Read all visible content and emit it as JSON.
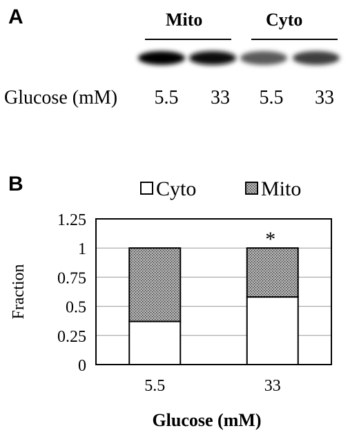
{
  "panel_a": {
    "letter": "A",
    "groups": [
      "Mito",
      "Cyto"
    ],
    "row_label": "Glucose (mM)",
    "lanes": [
      "5.5",
      "33",
      "5.5",
      "33"
    ],
    "band_intensity": [
      1.0,
      0.95,
      0.55,
      0.7
    ]
  },
  "panel_b": {
    "letter": "B",
    "legend": [
      {
        "label": "Cyto",
        "pattern": "white"
      },
      {
        "label": "Mito",
        "pattern": "stipple"
      }
    ],
    "significance_marker": "*"
  },
  "chart_data": {
    "type": "bar",
    "stacked": true,
    "categories": [
      "5.5",
      "33"
    ],
    "series": [
      {
        "name": "Cyto",
        "values": [
          0.37,
          0.58
        ]
      },
      {
        "name": "Mito",
        "values": [
          0.63,
          0.42
        ]
      }
    ],
    "xlabel": "Glucose (mM)",
    "ylabel": "Fraction",
    "ylim": [
      0,
      1.25
    ],
    "yticks": [
      "0",
      "0.25",
      "0.5",
      "0.75",
      "1",
      "1.25"
    ],
    "grid": true,
    "legend_position": "top",
    "annotations": [
      {
        "category": "33",
        "text": "*"
      }
    ]
  }
}
